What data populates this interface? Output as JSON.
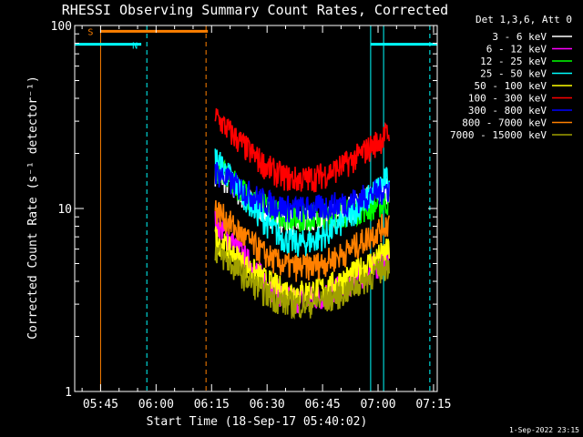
{
  "chart_data": {
    "type": "line",
    "title": "RHESSI Observing Summary Count Rates, Corrected",
    "xlabel": "Start Time (18-Sep-17 05:40:02)",
    "ylabel": "Corrected Count Rate (s⁻¹ detector⁻¹)",
    "y_scale": "log",
    "ylim": [
      1,
      100
    ],
    "xlim_minutes": [
      -2,
      96
    ],
    "x_ticks": [
      {
        "label": "05:45",
        "minute": 5
      },
      {
        "label": "06:00",
        "minute": 20
      },
      {
        "label": "06:15",
        "minute": 35
      },
      {
        "label": "06:30",
        "minute": 50
      },
      {
        "label": "06:45",
        "minute": 65
      },
      {
        "label": "07:00",
        "minute": 80
      },
      {
        "label": "07:15",
        "minute": 95
      }
    ],
    "y_ticks": [
      {
        "label": "1",
        "value": 1
      },
      {
        "label": "10",
        "value": 10
      },
      {
        "label": "100",
        "value": 100
      }
    ],
    "legend_header": "Det 1,3,6, Att 0",
    "legend_position": "right",
    "data_window_minutes": [
      36,
      83
    ],
    "series": [
      {
        "name": "3 - 6 keV",
        "color": "#ffffff",
        "start": 16,
        "dip": 8.5,
        "end": 13
      },
      {
        "name": "6 - 12 keV",
        "color": "#ff00ff",
        "start": 8.5,
        "dip": 3.2,
        "end": 5.5
      },
      {
        "name": "12 - 25 keV",
        "color": "#00ff00",
        "start": 17,
        "dip": 9,
        "end": 11
      },
      {
        "name": "25 - 50 keV",
        "color": "#00ffff",
        "start": 19,
        "dip": 6.5,
        "end": 15
      },
      {
        "name": "50 - 100 keV",
        "color": "#ffff00",
        "start": 7,
        "dip": 3.5,
        "end": 6
      },
      {
        "name": "100 - 300 keV",
        "color": "#ff0000",
        "start": 32,
        "dip": 14.5,
        "end": 26
      },
      {
        "name": "300 - 800 keV",
        "color": "#0000ff",
        "start": 16,
        "dip": 10,
        "end": 13
      },
      {
        "name": "800 - 7000 keV",
        "color": "#ff8000",
        "start": 10,
        "dip": 4.8,
        "end": 8.5
      },
      {
        "name": "7000 - 15000 keV",
        "color": "#a0a000",
        "start": 6,
        "dip": 3,
        "end": 5
      }
    ],
    "flags": [
      {
        "label": "S",
        "color": "#ff8000",
        "start_minute": 5,
        "end_minute": 34,
        "level": 93
      },
      {
        "label": "N",
        "color": "#00ffff",
        "start_minute": -2,
        "end_minute": 16,
        "level": 79
      },
      {
        "label": "",
        "color": "#00ffff",
        "start_minute": 78,
        "end_minute": 96,
        "level": 79
      }
    ],
    "vertical_markers": [
      {
        "minute": 5,
        "color": "#ff8000",
        "style": "solid"
      },
      {
        "minute": 17.5,
        "color": "#00ffff",
        "style": "dashed"
      },
      {
        "minute": 33.5,
        "color": "#ff8000",
        "style": "dashed"
      },
      {
        "minute": 78,
        "color": "#00ffff",
        "style": "solid"
      },
      {
        "minute": 81.5,
        "color": "#00ffff",
        "style": "solid"
      },
      {
        "minute": 94,
        "color": "#00ffff",
        "style": "dashed"
      }
    ],
    "timestamp": "1-Sep-2022 23:15"
  }
}
